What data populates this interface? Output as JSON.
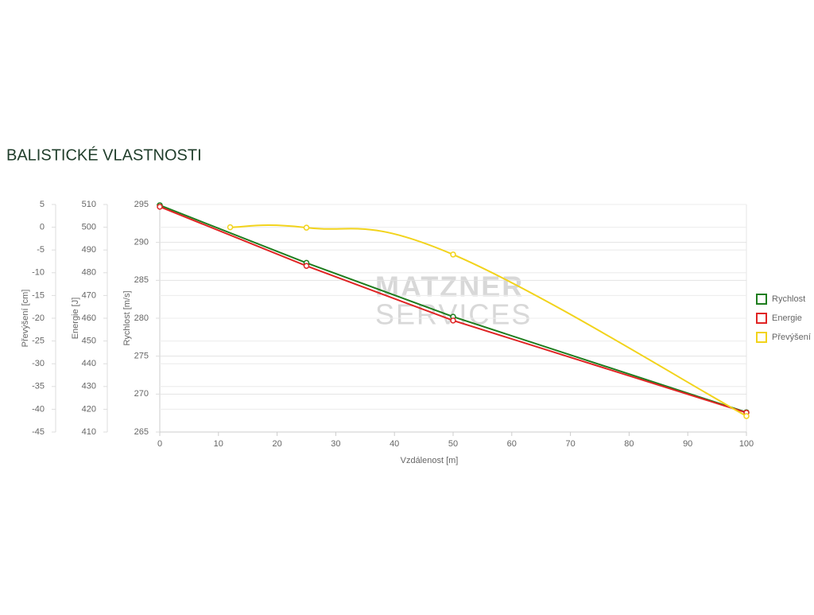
{
  "chart_data": {
    "type": "line",
    "title": "BALISTICKÉ VLASTNOSTI",
    "x_label": "Vzdálenost [m]",
    "y_label": "Rychlost [m/s]",
    "y2_label": "Energie [J]",
    "y3_label": "Převýšení [cm]",
    "watermark": [
      "MATZNER",
      "SERVICES"
    ],
    "xlim": [
      0,
      100
    ],
    "xticks": [
      0,
      10,
      20,
      30,
      40,
      50,
      60,
      70,
      80,
      90,
      100
    ],
    "ylim": [
      265,
      295
    ],
    "yticks": [
      265,
      270,
      275,
      280,
      285,
      290,
      295
    ],
    "y2lim": [
      410,
      510
    ],
    "y2ticks": [
      410,
      420,
      430,
      440,
      450,
      460,
      470,
      480,
      490,
      500,
      510
    ],
    "y3lim": [
      -45,
      5
    ],
    "y3ticks": [
      -45,
      -40,
      -35,
      -30,
      -25,
      -20,
      -15,
      -10,
      -5,
      0,
      5
    ],
    "grid": true,
    "legend": "right",
    "series": [
      {
        "name": "Rychlost",
        "color": "#1e7d1e",
        "axis": "y",
        "smooth": false,
        "x": [
          0,
          25,
          50,
          100
        ],
        "values": [
          294.9,
          287.3,
          280.2,
          267.6
        ]
      },
      {
        "name": "Energie",
        "color": "#e02424",
        "axis": "y2",
        "smooth": false,
        "x": [
          0,
          25,
          50,
          100
        ],
        "values": [
          509,
          483,
          459,
          418.5
        ]
      },
      {
        "name": "Převýšení",
        "color": "#f2d31b",
        "axis": "y3",
        "smooth": true,
        "x": [
          12,
          25,
          50,
          100
        ],
        "values": [
          0,
          -0.1,
          -6,
          -41.5
        ]
      }
    ]
  }
}
